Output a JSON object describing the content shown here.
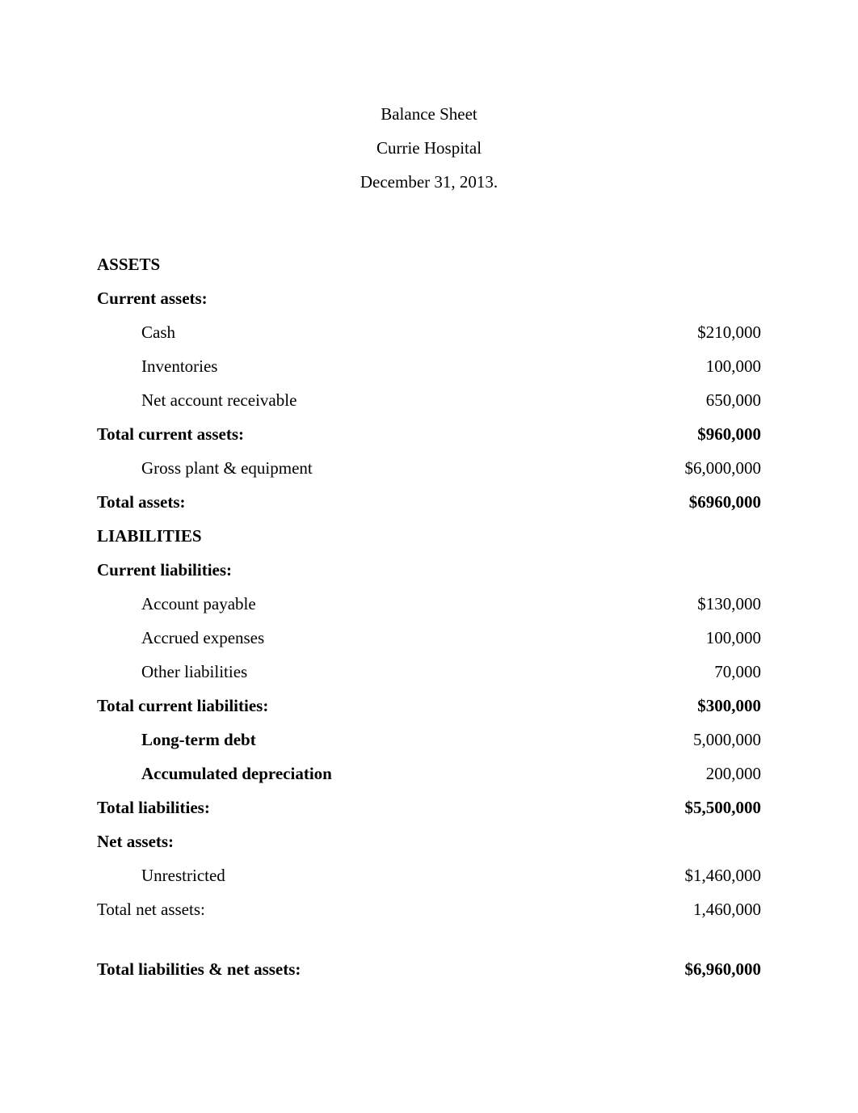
{
  "header": {
    "line1": "Balance Sheet",
    "line2": "Currie Hospital",
    "line3": "December 31, 2013."
  },
  "assets": {
    "title": "ASSETS",
    "current_heading": "Current assets:",
    "items": [
      {
        "label": "Cash",
        "value": "$210,000"
      },
      {
        "label": "Inventories",
        "value": "100,000"
      },
      {
        "label": "Net account receivable",
        "value": "650,000"
      }
    ],
    "total_current": {
      "label": "Total current assets:",
      "value": "$960,000"
    },
    "gross_plant": {
      "label": "Gross plant & equipment",
      "value": "$6,000,000"
    },
    "total": {
      "label": "Total assets:",
      "value": "$6960,000"
    }
  },
  "liabilities": {
    "title": "LIABILITIES",
    "current_heading": "Current liabilities:",
    "items": [
      {
        "label": "Account payable",
        "value": "$130,000"
      },
      {
        "label": "Accrued expenses",
        "value": "100,000"
      },
      {
        "label": "Other liabilities",
        "value": "70,000"
      }
    ],
    "total_current": {
      "label": "Total current liabilities:",
      "value": "$300,000"
    },
    "long_term": {
      "label": "Long-term debt",
      "value": "5,000,000"
    },
    "accum_dep": {
      "label": "Accumulated depreciation",
      "value": "200,000"
    },
    "total": {
      "label": "Total liabilities:",
      "value": "$5,500,000"
    }
  },
  "net_assets": {
    "heading": "Net assets:",
    "unrestricted": {
      "label": "Unrestricted",
      "value": "$1,460,000"
    },
    "total": {
      "label": "Total net assets:",
      "value": "1,460,000"
    }
  },
  "grand_total": {
    "label": "Total liabilities & net assets:",
    "value": "$6,960,000"
  }
}
